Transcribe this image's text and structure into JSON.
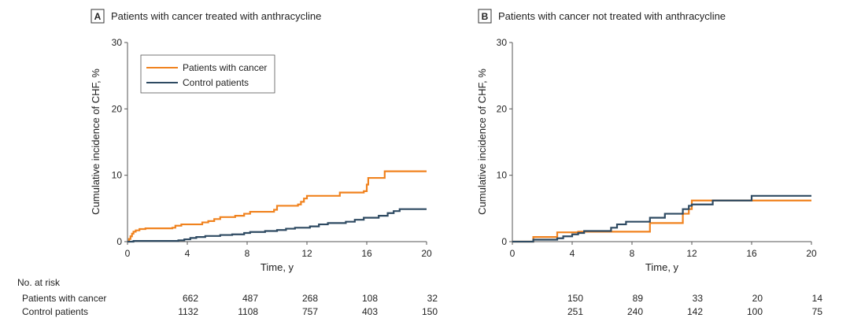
{
  "figure": {
    "risk_table": {
      "header": "No. at risk",
      "rows": [
        "Patients with cancer",
        "Control patients"
      ]
    }
  },
  "colors": {
    "cancer": "#f0821e",
    "control": "#2e4a62",
    "axis": "#555555"
  },
  "chart_data": [
    {
      "type": "line",
      "panel_letter": "A",
      "title": "Patients with cancer treated with anthracycline",
      "xlabel": "Time, y",
      "ylabel": "Cumulative incidence of CHF, %",
      "xlim": [
        0,
        20
      ],
      "ylim": [
        0,
        30
      ],
      "xticks": [
        0,
        4,
        8,
        12,
        16,
        20
      ],
      "yticks": [
        0,
        10,
        20,
        30
      ],
      "grid": false,
      "legend": {
        "position": "top-left",
        "entries": [
          "Patients with cancer",
          "Control patients"
        ]
      },
      "series": [
        {
          "name": "Patients with cancer",
          "color_key": "cancer",
          "step": true,
          "points": [
            [
              0,
              0
            ],
            [
              0.1,
              0.4
            ],
            [
              0.2,
              0.8
            ],
            [
              0.3,
              1.2
            ],
            [
              0.4,
              1.5
            ],
            [
              0.55,
              1.7
            ],
            [
              0.8,
              1.9
            ],
            [
              1.2,
              2.0
            ],
            [
              3.0,
              2.1
            ],
            [
              3.2,
              2.4
            ],
            [
              3.6,
              2.6
            ],
            [
              5.0,
              2.9
            ],
            [
              5.4,
              3.1
            ],
            [
              5.8,
              3.4
            ],
            [
              6.2,
              3.7
            ],
            [
              7.2,
              3.9
            ],
            [
              7.8,
              4.2
            ],
            [
              8.2,
              4.5
            ],
            [
              9.8,
              4.8
            ],
            [
              10.0,
              5.4
            ],
            [
              11.4,
              5.6
            ],
            [
              11.6,
              6.0
            ],
            [
              11.8,
              6.5
            ],
            [
              12.0,
              6.9
            ],
            [
              14.2,
              7.4
            ],
            [
              15.8,
              7.6
            ],
            [
              16.0,
              8.6
            ],
            [
              16.1,
              9.6
            ],
            [
              17.2,
              10.6
            ],
            [
              20,
              10.6
            ]
          ]
        },
        {
          "name": "Control patients",
          "color_key": "control",
          "step": true,
          "points": [
            [
              0,
              0
            ],
            [
              0.4,
              0.1
            ],
            [
              3.4,
              0.2
            ],
            [
              3.8,
              0.35
            ],
            [
              4.2,
              0.55
            ],
            [
              4.6,
              0.7
            ],
            [
              5.2,
              0.85
            ],
            [
              6.2,
              1.0
            ],
            [
              7.0,
              1.1
            ],
            [
              7.8,
              1.3
            ],
            [
              8.2,
              1.45
            ],
            [
              9.2,
              1.6
            ],
            [
              10.0,
              1.75
            ],
            [
              10.6,
              1.95
            ],
            [
              11.2,
              2.1
            ],
            [
              12.2,
              2.3
            ],
            [
              12.8,
              2.6
            ],
            [
              13.4,
              2.8
            ],
            [
              14.6,
              3.0
            ],
            [
              15.2,
              3.3
            ],
            [
              15.8,
              3.6
            ],
            [
              16.8,
              3.9
            ],
            [
              17.4,
              4.3
            ],
            [
              17.8,
              4.6
            ],
            [
              18.2,
              4.9
            ],
            [
              20,
              4.9
            ]
          ]
        }
      ],
      "at_risk": {
        "x": [
          4,
          8,
          12,
          16,
          20
        ],
        "rows": [
          {
            "label": "Patients with cancer",
            "values": [
              "662",
              "487",
              "268",
              "108",
              "32"
            ]
          },
          {
            "label": "Control patients",
            "values": [
              "1132",
              "1108",
              "757",
              "403",
              "150"
            ]
          }
        ]
      }
    },
    {
      "type": "line",
      "panel_letter": "B",
      "title": "Patients with cancer not treated with anthracycline",
      "xlabel": "Time, y",
      "ylabel": "Cumulative incidence of CHF, %",
      "xlim": [
        0,
        20
      ],
      "ylim": [
        0,
        30
      ],
      "xticks": [
        0,
        4,
        8,
        12,
        16,
        20
      ],
      "yticks": [
        0,
        10,
        20,
        30
      ],
      "grid": false,
      "series": [
        {
          "name": "Patients with cancer",
          "color_key": "cancer",
          "step": true,
          "points": [
            [
              0,
              0
            ],
            [
              1.4,
              0.7
            ],
            [
              3.0,
              1.4
            ],
            [
              4.4,
              1.5
            ],
            [
              9.2,
              2.8
            ],
            [
              11.4,
              4.2
            ],
            [
              11.8,
              4.9
            ],
            [
              12.0,
              6.2
            ],
            [
              20,
              6.2
            ]
          ]
        },
        {
          "name": "Control patients",
          "color_key": "control",
          "step": true,
          "points": [
            [
              0,
              0
            ],
            [
              1.4,
              0.3
            ],
            [
              3.0,
              0.5
            ],
            [
              3.4,
              0.8
            ],
            [
              4.0,
              1.1
            ],
            [
              4.4,
              1.3
            ],
            [
              4.8,
              1.6
            ],
            [
              6.6,
              2.1
            ],
            [
              7.0,
              2.6
            ],
            [
              7.6,
              3.0
            ],
            [
              9.2,
              3.6
            ],
            [
              10.2,
              4.2
            ],
            [
              11.4,
              4.9
            ],
            [
              11.8,
              5.4
            ],
            [
              12.0,
              5.6
            ],
            [
              13.4,
              6.2
            ],
            [
              16.0,
              6.9
            ],
            [
              20,
              6.9
            ]
          ]
        }
      ],
      "at_risk": {
        "x": [
          4,
          8,
          12,
          16,
          20
        ],
        "rows": [
          {
            "label": "Patients with cancer",
            "values": [
              "150",
              "89",
              "33",
              "20",
              "14"
            ]
          },
          {
            "label": "Control patients",
            "values": [
              "251",
              "240",
              "142",
              "100",
              "75"
            ]
          }
        ]
      }
    }
  ]
}
